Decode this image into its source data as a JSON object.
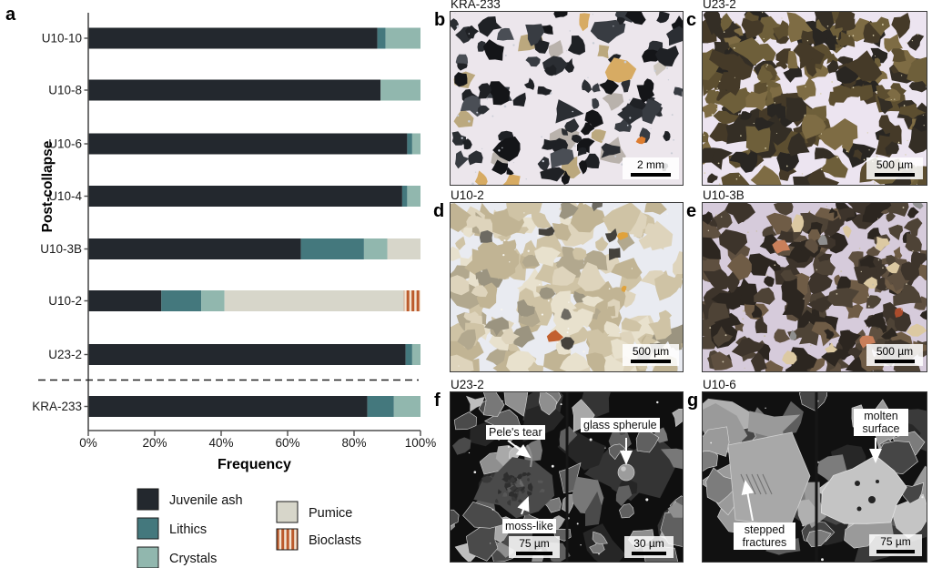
{
  "panel_a": {
    "letter": "a"
  },
  "chart_data": {
    "type": "bar",
    "orientation": "horizontal",
    "stacked": true,
    "title": "",
    "xlabel": "Frequency",
    "ylabel": "Post-collapse",
    "xlim": [
      0,
      100
    ],
    "x_ticks": [
      "0%",
      "20%",
      "40%",
      "60%",
      "80%",
      "100%"
    ],
    "grid": false,
    "legend_position": "bottom",
    "categories": [
      "U10-10",
      "U10-8",
      "U10-6",
      "U10-4",
      "U10-3B",
      "U10-2",
      "U23-2",
      "KRA-233"
    ],
    "series": [
      {
        "name": "Juvenile ash",
        "color": "#23282e",
        "values": [
          87,
          88,
          96,
          94.5,
          64,
          22,
          95.5,
          84
        ]
      },
      {
        "name": "Lithics",
        "color": "#44787d",
        "values": [
          2.5,
          0,
          1.5,
          1.5,
          19,
          12,
          2,
          8
        ]
      },
      {
        "name": "Crystals",
        "color": "#91b7ae",
        "values": [
          10.5,
          12,
          2.5,
          4,
          7,
          7,
          2.5,
          8
        ]
      },
      {
        "name": "Pumice",
        "color": "#d7d6ca",
        "values": [
          0,
          0,
          0,
          0,
          10,
          54,
          0,
          0
        ]
      },
      {
        "name": "Bioclasts",
        "color": "#bc5a2c",
        "pattern": "vertical-stripes",
        "values": [
          0,
          0,
          0,
          0,
          0,
          5,
          0,
          0
        ]
      }
    ],
    "separator": {
      "style": "dashed",
      "between": [
        "U23-2",
        "KRA-233"
      ]
    },
    "group_label": {
      "text": "Post-collapse",
      "applies_to": [
        "U10-10",
        "U10-8",
        "U10-6",
        "U10-4",
        "U10-3B",
        "U10-2",
        "U23-2"
      ]
    },
    "legend": [
      "Juvenile ash",
      "Lithics",
      "Crystals",
      "Pumice",
      "Bioclasts"
    ]
  },
  "panels": [
    {
      "letter": "b",
      "title": "KRA-233",
      "scale_bars": [
        "2 mm"
      ],
      "annotations": []
    },
    {
      "letter": "c",
      "title": "U23-2",
      "scale_bars": [
        "500 µm"
      ],
      "annotations": []
    },
    {
      "letter": "d",
      "title": "U10-2",
      "scale_bars": [
        "500 µm"
      ],
      "annotations": []
    },
    {
      "letter": "e",
      "title": "U10-3B",
      "scale_bars": [
        "500 µm"
      ],
      "annotations": []
    },
    {
      "letter": "f",
      "title": "U23-2",
      "scale_bars": [
        "75 µm",
        "30 µm"
      ],
      "annotations": [
        "Pele's tear",
        "moss-like",
        "glass spherule"
      ]
    },
    {
      "letter": "g",
      "title": "U10-6",
      "scale_bars": [
        "75 µm"
      ],
      "annotations": [
        "stepped fractures",
        "molten surface"
      ]
    }
  ]
}
